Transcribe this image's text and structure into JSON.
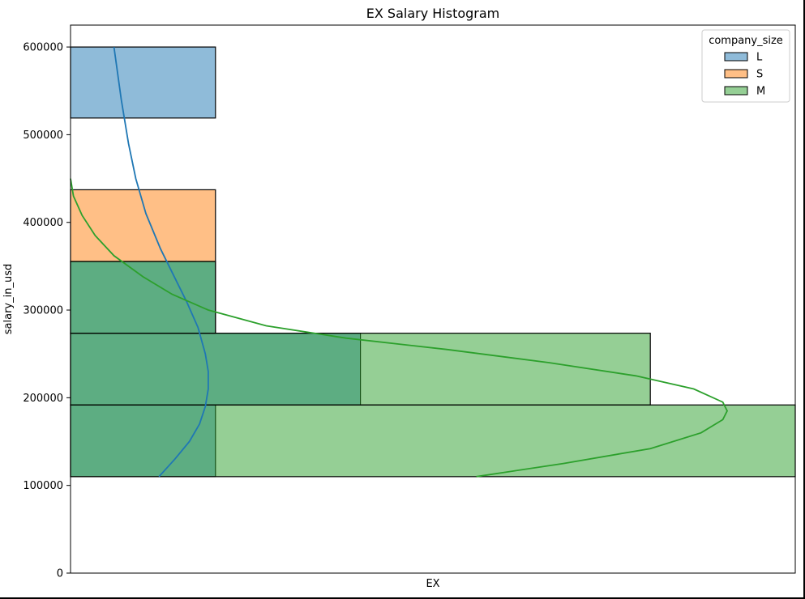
{
  "chart_data": {
    "type": "histogram",
    "title": "EX Salary Histogram",
    "xlabel": "EX",
    "ylabel": "salary_in_usd",
    "orientation": "horizontal",
    "x_range": [
      0,
      5
    ],
    "ylim": [
      0,
      625000
    ],
    "yticks": [
      0,
      100000,
      200000,
      300000,
      400000,
      500000,
      600000
    ],
    "ytick_labels": [
      "0",
      "100000",
      "200000",
      "300000",
      "400000",
      "500000",
      "600000"
    ],
    "grid": false,
    "legend": {
      "title": "company_size",
      "placement": "top-right",
      "entries": [
        "L",
        "S",
        "M"
      ]
    },
    "bin_edges": [
      110000,
      191800,
      273600,
      355400,
      437200,
      519000,
      600000
    ],
    "series": [
      {
        "name": "L",
        "color": "#1f77b4",
        "bins": [
          {
            "y0": 110000,
            "y1": 191800,
            "count": 1
          },
          {
            "y0": 191800,
            "y1": 273600,
            "count": 2
          },
          {
            "y0": 273600,
            "y1": 355400,
            "count": 1
          },
          {
            "y0": 519000,
            "y1": 600000,
            "count": 1
          }
        ],
        "kde": [
          [
            0.61,
            110000
          ],
          [
            0.72,
            130000
          ],
          [
            0.82,
            150000
          ],
          [
            0.89,
            170000
          ],
          [
            0.93,
            190000
          ],
          [
            0.95,
            210000
          ],
          [
            0.95,
            230000
          ],
          [
            0.93,
            250000
          ],
          [
            0.88,
            280000
          ],
          [
            0.8,
            310000
          ],
          [
            0.71,
            340000
          ],
          [
            0.62,
            370000
          ],
          [
            0.52,
            410000
          ],
          [
            0.45,
            450000
          ],
          [
            0.4,
            490000
          ],
          [
            0.35,
            540000
          ],
          [
            0.3,
            600000
          ]
        ]
      },
      {
        "name": "S",
        "color": "#ff7f0e",
        "bins": [
          {
            "y0": 355400,
            "y1": 437200,
            "count": 1
          }
        ],
        "kde": []
      },
      {
        "name": "M",
        "color": "#2ca02c",
        "bins": [
          {
            "y0": 110000,
            "y1": 191800,
            "count": 5
          },
          {
            "y0": 191800,
            "y1": 273600,
            "count": 4
          },
          {
            "y0": 273600,
            "y1": 355400,
            "count": 1
          }
        ],
        "kde": [
          [
            2.8,
            110000
          ],
          [
            3.4,
            125000
          ],
          [
            4.0,
            142000
          ],
          [
            4.35,
            160000
          ],
          [
            4.5,
            175000
          ],
          [
            4.53,
            185000
          ],
          [
            4.5,
            195000
          ],
          [
            4.3,
            210000
          ],
          [
            3.9,
            225000
          ],
          [
            3.3,
            240000
          ],
          [
            2.6,
            255000
          ],
          [
            1.9,
            268000
          ],
          [
            1.35,
            282000
          ],
          [
            0.95,
            300000
          ],
          [
            0.7,
            318000
          ],
          [
            0.5,
            338000
          ],
          [
            0.3,
            362000
          ],
          [
            0.17,
            385000
          ],
          [
            0.08,
            408000
          ],
          [
            0.02,
            430000
          ],
          [
            0.0,
            450000
          ]
        ]
      }
    ]
  }
}
